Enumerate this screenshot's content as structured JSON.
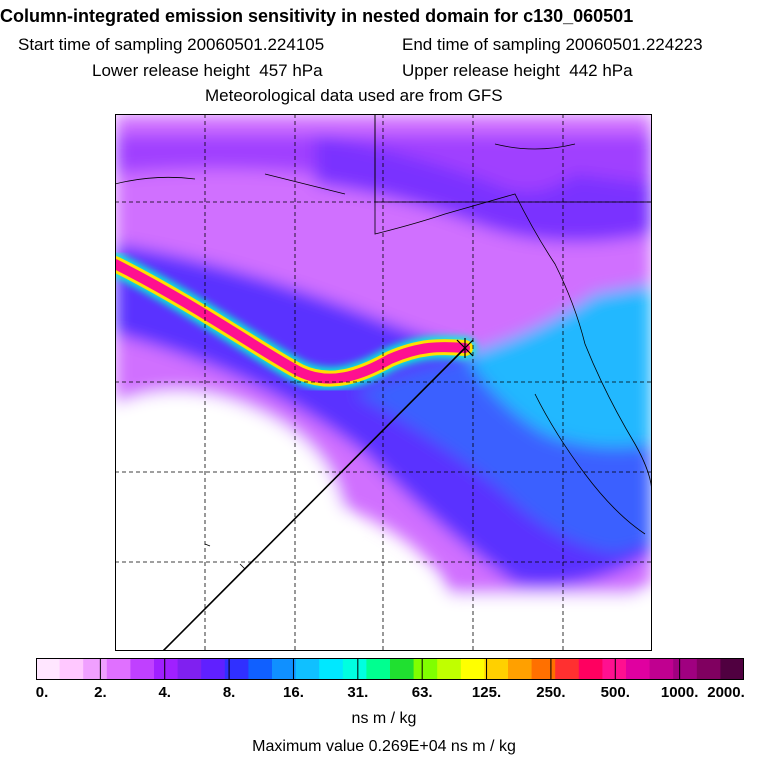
{
  "header": {
    "title": "Column-integrated emission sensitivity in nested domain for c130_060501",
    "start_time": "Start time of sampling 20060501.224105",
    "end_time": "End time of sampling 20060501.224223",
    "lower_height": "Lower release height  457 hPa",
    "upper_height": "Upper release height  442 hPa",
    "met_data": "Meteorological data used are from GFS"
  },
  "colorbar": {
    "ticks": [
      "0.",
      "2.",
      "4.",
      "8.",
      "16.",
      "31.",
      "63.",
      "125.",
      "250.",
      "500.",
      "1000.",
      "2000."
    ],
    "colors": [
      "#ffe6ff",
      "#ffc8ff",
      "#f0a0ff",
      "#e070ff",
      "#c040ff",
      "#a020ff",
      "#8020f0",
      "#6020ff",
      "#3030ff",
      "#1060ff",
      "#1090ff",
      "#10c0ff",
      "#00e8ff",
      "#00ffe0",
      "#00ff90",
      "#20e030",
      "#80ff00",
      "#c0ff00",
      "#ffff00",
      "#ffd000",
      "#ffa000",
      "#ff7000",
      "#ff3030",
      "#ff0060",
      "#ff1090",
      "#e000a0",
      "#c00090",
      "#a00080",
      "#800060",
      "#500040"
    ],
    "units": "ns m / kg",
    "max_value": "Maximum value  0.269E+04 ns m / kg"
  },
  "map": {
    "release_point": "release-point-marker",
    "colors": {
      "background": "#ffffff",
      "low": "#d070ff",
      "mid": "#7a30ff",
      "blue": "#3a50ff",
      "cyan": "#20b8ff",
      "plume_outer": "#00ffd0",
      "plume_mid": "#ffe000",
      "plume_core": "#ff1090"
    }
  }
}
